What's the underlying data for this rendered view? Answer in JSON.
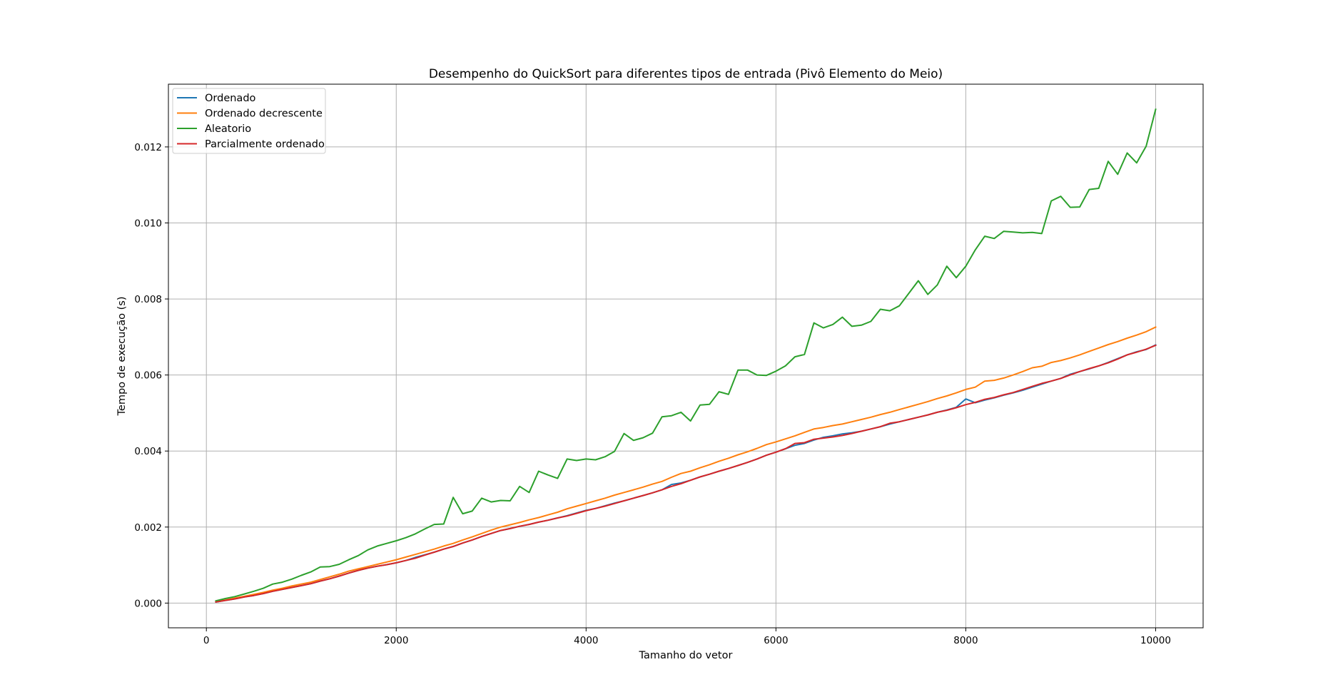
{
  "chart_data": {
    "type": "line",
    "title": "Desempenho do QuickSort para diferentes tipos de entrada (Pivô Elemento do Meio)",
    "xlabel": "Tamanho do vetor",
    "ylabel": "Tempo de execução (s)",
    "xlim": [
      -400,
      10500
    ],
    "ylim": [
      -0.00065,
      0.01365
    ],
    "xticks": [
      0,
      2000,
      4000,
      6000,
      8000,
      10000
    ],
    "xtick_labels": [
      "0",
      "2000",
      "4000",
      "6000",
      "8000",
      "10000"
    ],
    "yticks": [
      0.0,
      0.002,
      0.004,
      0.006,
      0.008,
      0.01,
      0.012
    ],
    "ytick_labels": [
      "0.000",
      "0.002",
      "0.004",
      "0.006",
      "0.008",
      "0.010",
      "0.012"
    ],
    "grid": true,
    "legend_position": "upper-left",
    "x": [
      100,
      200,
      300,
      400,
      500,
      600,
      700,
      800,
      900,
      1000,
      1100,
      1200,
      1300,
      1400,
      1500,
      1600,
      1700,
      1800,
      1900,
      2000,
      2100,
      2200,
      2300,
      2400,
      2500,
      2600,
      2700,
      2800,
      2900,
      3000,
      3100,
      3200,
      3300,
      3400,
      3500,
      3600,
      3700,
      3800,
      3900,
      4000,
      4100,
      4200,
      4300,
      4400,
      4500,
      4600,
      4700,
      4800,
      4900,
      5000,
      5100,
      5200,
      5300,
      5400,
      5500,
      5600,
      5700,
      5800,
      5900,
      6000,
      6100,
      6200,
      6300,
      6400,
      6500,
      6600,
      6700,
      6800,
      6900,
      7000,
      7100,
      7200,
      7300,
      7400,
      7500,
      7600,
      7700,
      7800,
      7900,
      8000,
      8100,
      8200,
      8300,
      8400,
      8500,
      8600,
      8700,
      8800,
      8900,
      9000,
      9100,
      9200,
      9300,
      9400,
      9500,
      9600,
      9700,
      9800,
      9900,
      10000
    ],
    "series": [
      {
        "name": "Ordenado",
        "color": "#1f77b4",
        "values": [
          3e-05,
          7e-05,
          0.00011,
          0.00016,
          0.0002,
          0.00025,
          0.00031,
          0.00036,
          0.00041,
          0.00046,
          0.00051,
          0.00058,
          0.00064,
          0.00071,
          0.00079,
          0.00086,
          0.00092,
          0.00097,
          0.00101,
          0.00106,
          0.00112,
          0.0012,
          0.00127,
          0.00134,
          0.00142,
          0.00149,
          0.00158,
          0.00166,
          0.00175,
          0.00183,
          0.00191,
          0.00196,
          0.00202,
          0.00207,
          0.00213,
          0.00218,
          0.00224,
          0.0023,
          0.00237,
          0.00244,
          0.00249,
          0.00256,
          0.00263,
          0.00269,
          0.00276,
          0.00283,
          0.0029,
          0.00298,
          0.00312,
          0.00316,
          0.00323,
          0.00332,
          0.00339,
          0.00347,
          0.00354,
          0.00362,
          0.0037,
          0.00379,
          0.00389,
          0.00397,
          0.00406,
          0.00415,
          0.0042,
          0.00429,
          0.00436,
          0.0044,
          0.00445,
          0.00448,
          0.00452,
          0.00458,
          0.00464,
          0.00471,
          0.00477,
          0.00483,
          0.00489,
          0.00495,
          0.00502,
          0.00508,
          0.00515,
          0.00537,
          0.00527,
          0.00534,
          0.0054,
          0.00547,
          0.00553,
          0.0056,
          0.00568,
          0.00576,
          0.00584,
          0.00591,
          0.00602,
          0.00609,
          0.00616,
          0.00624,
          0.00633,
          0.00643,
          0.00653,
          0.00661,
          0.00667,
          0.00679
        ]
      },
      {
        "name": "Ordenado decrescente",
        "color": "#ff7f0e",
        "values": [
          4e-05,
          8e-05,
          0.00013,
          0.00018,
          0.00023,
          0.00028,
          0.00034,
          0.00039,
          0.00045,
          0.0005,
          0.00055,
          0.00062,
          0.00069,
          0.00076,
          0.00084,
          0.0009,
          0.00096,
          0.00102,
          0.00108,
          0.00114,
          0.00121,
          0.00128,
          0.00135,
          0.00142,
          0.0015,
          0.00157,
          0.00166,
          0.00174,
          0.00183,
          0.00192,
          0.002,
          0.00206,
          0.00212,
          0.00219,
          0.00225,
          0.00232,
          0.00239,
          0.00248,
          0.00255,
          0.00262,
          0.00269,
          0.00276,
          0.00284,
          0.00291,
          0.00298,
          0.00305,
          0.00313,
          0.0032,
          0.00331,
          0.00341,
          0.00347,
          0.00356,
          0.00364,
          0.00373,
          0.00381,
          0.0039,
          0.00398,
          0.00407,
          0.00417,
          0.00424,
          0.00432,
          0.0044,
          0.00449,
          0.00458,
          0.00462,
          0.00467,
          0.00471,
          0.00477,
          0.00483,
          0.00489,
          0.00496,
          0.00502,
          0.00509,
          0.00516,
          0.00523,
          0.0053,
          0.00538,
          0.00545,
          0.00553,
          0.00562,
          0.00568,
          0.00584,
          0.00586,
          0.00592,
          0.006,
          0.00609,
          0.00619,
          0.00623,
          0.00633,
          0.00638,
          0.00645,
          0.00653,
          0.00662,
          0.00671,
          0.0068,
          0.00688,
          0.00697,
          0.00705,
          0.00714,
          0.00726
        ]
      },
      {
        "name": "Aleatorio",
        "color": "#2ca02c",
        "values": [
          6e-05,
          0.00012,
          0.00017,
          0.00024,
          0.00031,
          0.00039,
          0.0005,
          0.00055,
          0.00063,
          0.00073,
          0.00082,
          0.00095,
          0.00096,
          0.00102,
          0.00114,
          0.00125,
          0.0014,
          0.0015,
          0.00157,
          0.00164,
          0.00172,
          0.00182,
          0.00195,
          0.00207,
          0.00208,
          0.00278,
          0.00235,
          0.00242,
          0.00276,
          0.00266,
          0.0027,
          0.00269,
          0.00307,
          0.00291,
          0.00347,
          0.00337,
          0.00328,
          0.00379,
          0.00375,
          0.00379,
          0.00377,
          0.00385,
          0.00399,
          0.00446,
          0.00428,
          0.00435,
          0.00447,
          0.0049,
          0.00493,
          0.00502,
          0.00479,
          0.00521,
          0.00523,
          0.00556,
          0.00549,
          0.00613,
          0.00613,
          0.006,
          0.00599,
          0.0061,
          0.00624,
          0.00648,
          0.00654,
          0.00737,
          0.00724,
          0.00733,
          0.00752,
          0.00728,
          0.00731,
          0.00741,
          0.00773,
          0.00769,
          0.00782,
          0.00815,
          0.00848,
          0.00812,
          0.00837,
          0.00886,
          0.00856,
          0.00886,
          0.00929,
          0.00965,
          0.00959,
          0.00978,
          0.00976,
          0.00974,
          0.00975,
          0.00972,
          0.01058,
          0.0107,
          0.01041,
          0.01042,
          0.01088,
          0.01091,
          0.01162,
          0.01128,
          0.01184,
          0.01158,
          0.01202,
          0.01299
        ]
      },
      {
        "name": "Parcialmente ordenado",
        "color": "#d62728",
        "values": [
          3e-05,
          7e-05,
          0.00011,
          0.00016,
          0.0002,
          0.00025,
          0.00031,
          0.00036,
          0.00041,
          0.00046,
          0.00051,
          0.00058,
          0.00064,
          0.00071,
          0.00079,
          0.00086,
          0.00092,
          0.00097,
          0.00101,
          0.00106,
          0.00112,
          0.00118,
          0.00126,
          0.00134,
          0.00142,
          0.00149,
          0.00158,
          0.00166,
          0.00175,
          0.00183,
          0.00191,
          0.00196,
          0.00202,
          0.00207,
          0.00213,
          0.00218,
          0.00224,
          0.00229,
          0.00236,
          0.00243,
          0.00249,
          0.00255,
          0.00262,
          0.00269,
          0.00276,
          0.00283,
          0.0029,
          0.00298,
          0.00307,
          0.00314,
          0.00323,
          0.00332,
          0.00339,
          0.00347,
          0.00354,
          0.00362,
          0.0037,
          0.00379,
          0.00389,
          0.00397,
          0.00406,
          0.0042,
          0.00422,
          0.00431,
          0.00434,
          0.00437,
          0.00441,
          0.00446,
          0.00452,
          0.00458,
          0.00464,
          0.00473,
          0.00477,
          0.00483,
          0.00489,
          0.00495,
          0.00502,
          0.00507,
          0.00514,
          0.00522,
          0.00528,
          0.00536,
          0.00541,
          0.00548,
          0.00554,
          0.00562,
          0.0057,
          0.00578,
          0.00584,
          0.00591,
          0.006,
          0.00609,
          0.00617,
          0.00624,
          0.00632,
          0.00642,
          0.00653,
          0.0066,
          0.00668,
          0.00678
        ]
      }
    ]
  }
}
